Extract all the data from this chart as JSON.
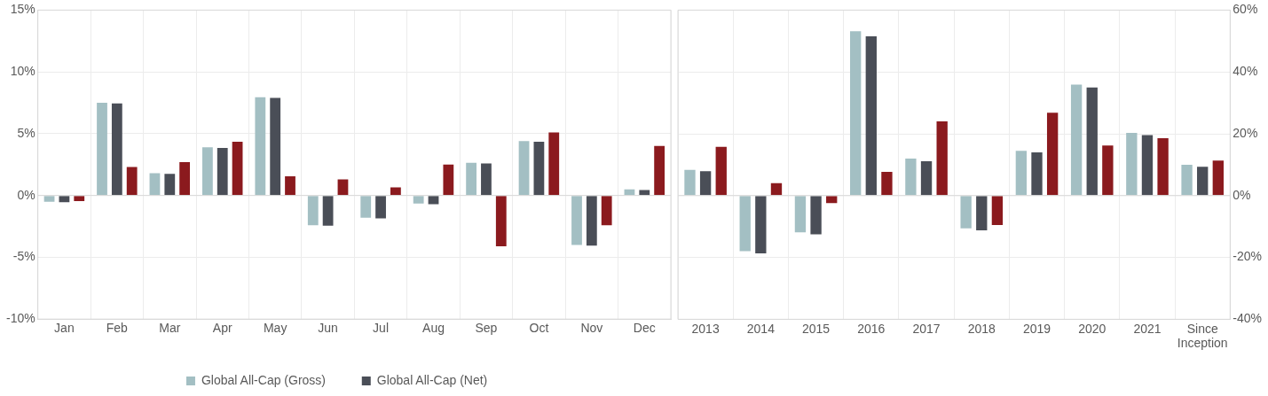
{
  "chart_data": [
    {
      "type": "bar",
      "categories": [
        "Jan",
        "Feb",
        "Mar",
        "Apr",
        "May",
        "Jun",
        "Jul",
        "Aug",
        "Sep",
        "Oct",
        "Nov",
        "Dec"
      ],
      "series": [
        {
          "name": "Global All-Cap (Gross)",
          "color": "#a3bfc3",
          "values": [
            -0.5,
            7.5,
            1.8,
            3.9,
            7.95,
            -2.4,
            -1.8,
            -0.65,
            2.65,
            4.4,
            -4.0,
            0.5
          ]
        },
        {
          "name": "Global All-Cap (Net)",
          "color": "#4a4e57",
          "values": [
            -0.55,
            7.45,
            1.75,
            3.85,
            7.9,
            -2.45,
            -1.85,
            -0.7,
            2.6,
            4.35,
            -4.05,
            0.45
          ]
        },
        {
          "color": "#8b1a1e",
          "values": [
            -0.45,
            2.3,
            2.7,
            4.35,
            1.55,
            1.3,
            0.65,
            2.5,
            -4.1,
            5.1,
            -2.4,
            4.0
          ]
        }
      ],
      "ylim": [
        -10,
        15
      ],
      "yticks": [
        {
          "value": -10,
          "label": "-10%"
        },
        {
          "value": -5,
          "label": "-5%"
        },
        {
          "value": 0,
          "label": "0%"
        },
        {
          "value": 5,
          "label": "5%"
        },
        {
          "value": 10,
          "label": "10%"
        },
        {
          "value": 15,
          "label": "15%"
        }
      ],
      "grid": true,
      "legend": "bottom"
    },
    {
      "type": "bar",
      "categories": [
        "2013",
        "2014",
        "2015",
        "2016",
        "2017",
        "2018",
        "2019",
        "2020",
        "2021",
        "Since Inception"
      ],
      "series": [
        {
          "color": "#a3bfc3",
          "axis": "y2",
          "values": [
            8.3,
            -18.0,
            -11.9,
            53.2,
            12.0,
            -10.6,
            14.5,
            35.9,
            20.3,
            10.0
          ]
        },
        {
          "color": "#4a4e57",
          "axis": "y2",
          "values": [
            7.9,
            -18.7,
            -12.5,
            51.5,
            11.1,
            -11.2,
            14.0,
            35.0,
            19.6,
            9.3
          ]
        },
        {
          "color": "#8b1a1e",
          "axis": "y2",
          "values": [
            15.8,
            4.0,
            -2.4,
            7.7,
            24.0,
            -9.5,
            26.8,
            16.2,
            18.6,
            11.3
          ]
        }
      ],
      "y2lim": [
        -40,
        60
      ],
      "y2ticks": [
        {
          "value": -40,
          "label": "-40%"
        },
        {
          "value": -20,
          "label": "-20%"
        },
        {
          "value": 0,
          "label": "0%"
        },
        {
          "value": 20,
          "label": "20%"
        },
        {
          "value": 40,
          "label": "40%"
        },
        {
          "value": 60,
          "label": "60%"
        }
      ],
      "grid": true
    }
  ]
}
